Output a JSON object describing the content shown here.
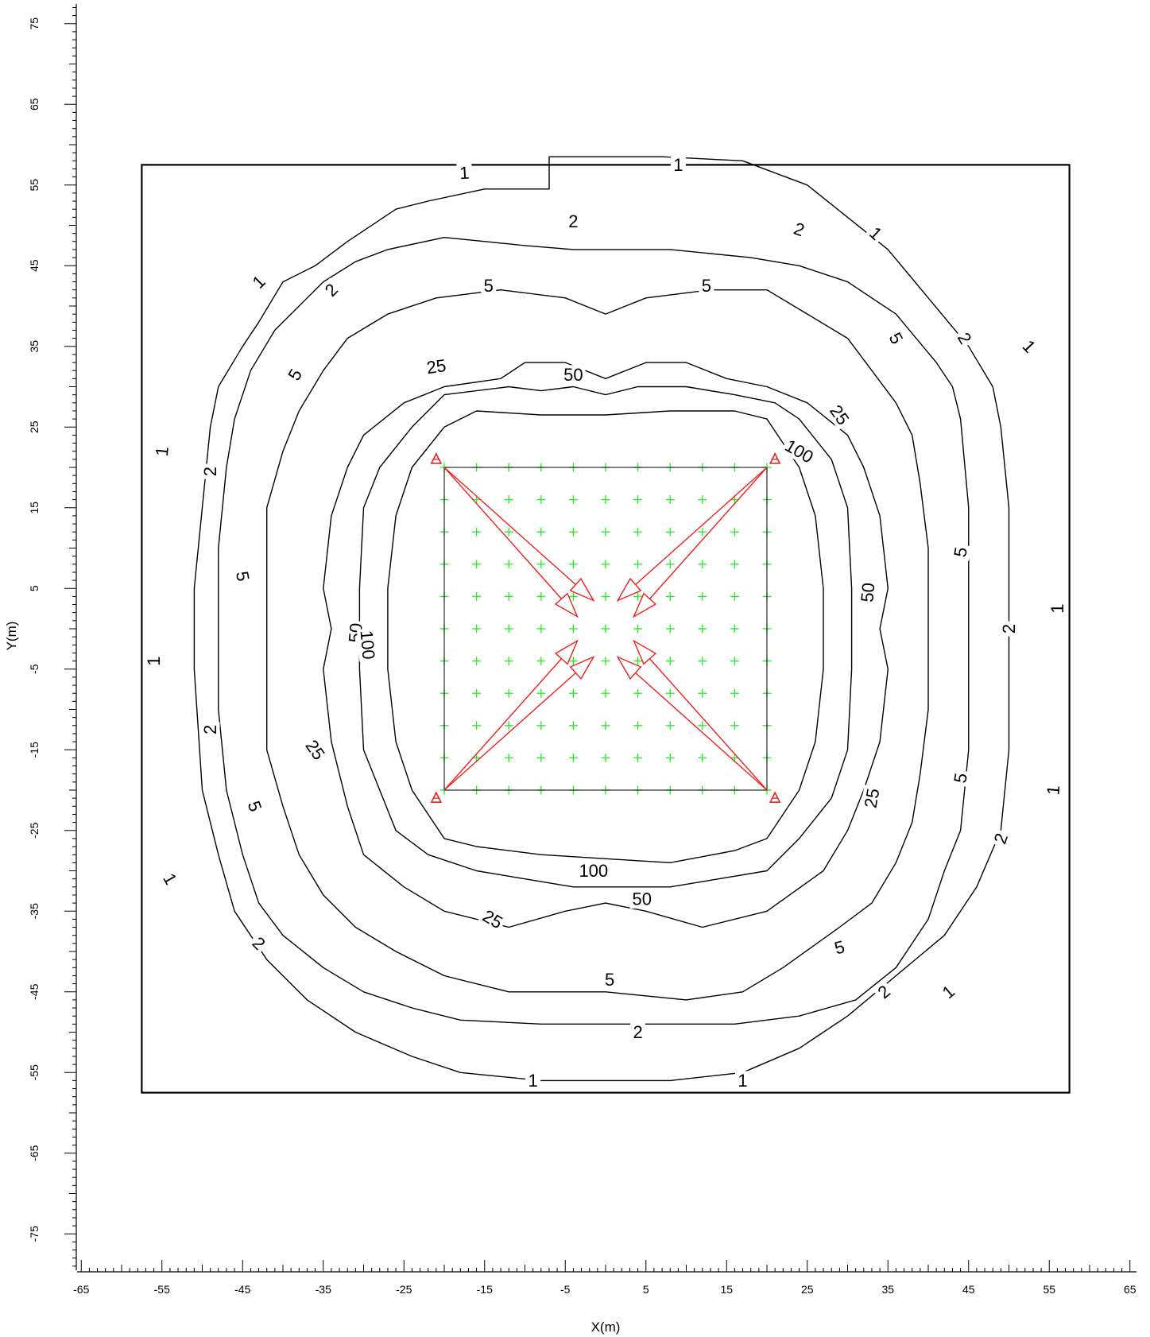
{
  "x_axis": {
    "title": "X(m)",
    "min": -65,
    "max": 65,
    "labels": [
      -65,
      -55,
      -45,
      -35,
      -25,
      -15,
      -5,
      5,
      15,
      25,
      35,
      45,
      55,
      65
    ]
  },
  "y_axis": {
    "title": "Y(m)",
    "min": -75,
    "max": 75,
    "labels": [
      75,
      65,
      55,
      45,
      35,
      25,
      15,
      5,
      -5,
      -15,
      -25,
      -35,
      -45,
      -55,
      -65,
      -75
    ]
  },
  "colors": {
    "contour": "#000000",
    "grid_points": "#22ee22",
    "sources": "#ee2222",
    "frame": "#000000"
  },
  "domain_box": {
    "x": [
      -57.5,
      57.5
    ],
    "y": [
      -57.5,
      57.5
    ]
  },
  "source_square": {
    "x": [
      -20,
      20
    ],
    "y": [
      -20,
      20
    ]
  },
  "sources": [
    {
      "x": -21,
      "y": 21
    },
    {
      "x": 21,
      "y": 21
    },
    {
      "x": -21,
      "y": -21
    },
    {
      "x": 21,
      "y": -21
    }
  ],
  "grid": {
    "x_start": -20,
    "x_end": 20,
    "y_start": -20,
    "y_end": 20,
    "step": 4,
    "marker": "plus"
  },
  "arrows": [
    {
      "from": [
        -20,
        20
      ],
      "to": [
        -1.5,
        3.5
      ]
    },
    {
      "from": [
        -20,
        20
      ],
      "to": [
        -3.5,
        1.5
      ]
    },
    {
      "from": [
        20,
        20
      ],
      "to": [
        1.5,
        3.5
      ]
    },
    {
      "from": [
        20,
        20
      ],
      "to": [
        3.5,
        1.5
      ]
    },
    {
      "from": [
        -20,
        -20
      ],
      "to": [
        -3.5,
        -1.5
      ]
    },
    {
      "from": [
        -20,
        -20
      ],
      "to": [
        -1.5,
        -3.5
      ]
    },
    {
      "from": [
        20,
        -20
      ],
      "to": [
        3.5,
        -1.5
      ]
    },
    {
      "from": [
        20,
        -20
      ],
      "to": [
        1.5,
        -3.5
      ]
    }
  ],
  "contours": [
    {
      "level": "1",
      "points": [
        [
          -7,
          58.5
        ],
        [
          7,
          58.5
        ],
        [
          17,
          58
        ],
        [
          25,
          55
        ],
        [
          30,
          51
        ],
        [
          35,
          47
        ],
        [
          40,
          41
        ],
        [
          45,
          35
        ],
        [
          48,
          30
        ],
        [
          49,
          25
        ],
        [
          50,
          15
        ],
        [
          50,
          5
        ],
        [
          50,
          -5
        ],
        [
          50,
          -15
        ],
        [
          49,
          -25
        ],
        [
          46,
          -32
        ],
        [
          42,
          -38
        ],
        [
          36,
          -43
        ],
        [
          30,
          -48
        ],
        [
          24,
          -52
        ],
        [
          17,
          -55
        ],
        [
          8,
          -56
        ],
        [
          -8,
          -56
        ],
        [
          -18,
          -55
        ],
        [
          -24,
          -53
        ],
        [
          -31,
          -50
        ],
        [
          -37,
          -46
        ],
        [
          -42,
          -41
        ],
        [
          -46,
          -35
        ],
        [
          -48,
          -28
        ],
        [
          -50,
          -20
        ],
        [
          -51,
          -5
        ],
        [
          -51,
          5
        ],
        [
          -50,
          15
        ],
        [
          -49,
          25
        ],
        [
          -48,
          30
        ],
        [
          -45,
          35
        ],
        [
          -43,
          38
        ],
        [
          -40,
          43
        ],
        [
          -36,
          45
        ],
        [
          -32,
          48
        ],
        [
          -26,
          52
        ],
        [
          -22,
          53
        ],
        [
          -15,
          54.5
        ],
        [
          -7,
          54.5
        ]
      ]
    },
    {
      "level": "2",
      "points": [
        [
          -4,
          47
        ],
        [
          8,
          47
        ],
        [
          18,
          46
        ],
        [
          24,
          45
        ],
        [
          30,
          43
        ],
        [
          36,
          39
        ],
        [
          41,
          33
        ],
        [
          43,
          30
        ],
        [
          44,
          26
        ],
        [
          45,
          15
        ],
        [
          45,
          5
        ],
        [
          45,
          -5
        ],
        [
          45,
          -15
        ],
        [
          44,
          -25
        ],
        [
          42,
          -30
        ],
        [
          40,
          -36
        ],
        [
          36,
          -42
        ],
        [
          31,
          -46
        ],
        [
          24,
          -48
        ],
        [
          16,
          -49
        ],
        [
          4,
          -49
        ],
        [
          -8,
          -49
        ],
        [
          -18,
          -48.5
        ],
        [
          -24,
          -47
        ],
        [
          -30,
          -45
        ],
        [
          -35,
          -42
        ],
        [
          -40,
          -38
        ],
        [
          -43,
          -34
        ],
        [
          -45,
          -28
        ],
        [
          -47,
          -20
        ],
        [
          -48,
          -10
        ],
        [
          -48,
          0
        ],
        [
          -48,
          10
        ],
        [
          -47,
          20
        ],
        [
          -46,
          26
        ],
        [
          -44,
          32
        ],
        [
          -41,
          37
        ],
        [
          -38,
          40
        ],
        [
          -35,
          43
        ],
        [
          -31,
          45.5
        ],
        [
          -27,
          47
        ],
        [
          -20,
          48.5
        ],
        [
          -10,
          47.5
        ]
      ]
    },
    {
      "level": "5",
      "points": [
        [
          -13,
          42
        ],
        [
          -5,
          41
        ],
        [
          0,
          39
        ],
        [
          5,
          41
        ],
        [
          13,
          42
        ],
        [
          20,
          42
        ],
        [
          25,
          39
        ],
        [
          30,
          36
        ],
        [
          33,
          32
        ],
        [
          36,
          28
        ],
        [
          38,
          24
        ],
        [
          39,
          18
        ],
        [
          40,
          10
        ],
        [
          40,
          5
        ],
        [
          40,
          -5
        ],
        [
          40,
          -10
        ],
        [
          39,
          -18
        ],
        [
          38,
          -24
        ],
        [
          36,
          -29
        ],
        [
          33,
          -34
        ],
        [
          29,
          -37
        ],
        [
          22,
          -42
        ],
        [
          17,
          -45
        ],
        [
          10,
          -46
        ],
        [
          0,
          -45
        ],
        [
          -5,
          -45
        ],
        [
          -12,
          -45
        ],
        [
          -20,
          -43
        ],
        [
          -26,
          -40
        ],
        [
          -31,
          -37
        ],
        [
          -35,
          -33
        ],
        [
          -38,
          -28
        ],
        [
          -40,
          -22
        ],
        [
          -42,
          -15
        ],
        [
          -42,
          -5
        ],
        [
          -42,
          0
        ],
        [
          -42,
          5
        ],
        [
          -42,
          15
        ],
        [
          -40,
          22
        ],
        [
          -38,
          27
        ],
        [
          -35,
          32
        ],
        [
          -32,
          36
        ],
        [
          -27,
          39
        ],
        [
          -21,
          41
        ]
      ]
    },
    {
      "level": "25",
      "points": [
        [
          -13,
          31
        ],
        [
          -10,
          33
        ],
        [
          -5,
          33
        ],
        [
          0,
          31
        ],
        [
          5,
          33
        ],
        [
          10,
          33
        ],
        [
          15,
          31
        ],
        [
          20,
          30
        ],
        [
          25,
          28
        ],
        [
          30,
          24
        ],
        [
          32,
          20
        ],
        [
          34,
          14
        ],
        [
          35,
          5
        ],
        [
          34,
          0
        ],
        [
          35,
          -5
        ],
        [
          34,
          -14
        ],
        [
          32,
          -20
        ],
        [
          30,
          -25
        ],
        [
          27,
          -30
        ],
        [
          20,
          -35
        ],
        [
          12,
          -37
        ],
        [
          5,
          -35
        ],
        [
          0,
          -34
        ],
        [
          -5,
          -35
        ],
        [
          -12,
          -37
        ],
        [
          -20,
          -35
        ],
        [
          -25,
          -32
        ],
        [
          -30,
          -28
        ],
        [
          -32,
          -22
        ],
        [
          -34,
          -14
        ],
        [
          -35,
          -5
        ],
        [
          -34,
          0
        ],
        [
          -35,
          5
        ],
        [
          -34,
          14
        ],
        [
          -32,
          20
        ],
        [
          -30,
          24
        ],
        [
          -25,
          28
        ],
        [
          -20,
          30
        ]
      ]
    },
    {
      "level": "50",
      "points": [
        [
          -8,
          29.5
        ],
        [
          -4,
          30
        ],
        [
          0,
          29
        ],
        [
          4,
          30
        ],
        [
          10,
          30
        ],
        [
          16,
          29
        ],
        [
          21,
          28
        ],
        [
          24,
          26
        ],
        [
          28,
          21
        ],
        [
          30,
          15
        ],
        [
          30.5,
          5
        ],
        [
          30.5,
          -5
        ],
        [
          30,
          -15
        ],
        [
          28,
          -21
        ],
        [
          24,
          -26
        ],
        [
          20,
          -30
        ],
        [
          14,
          -31
        ],
        [
          8,
          -32
        ],
        [
          2,
          -32
        ],
        [
          -4,
          -32
        ],
        [
          -10,
          -31
        ],
        [
          -16,
          -30
        ],
        [
          -22,
          -28
        ],
        [
          -26,
          -25
        ],
        [
          -28,
          -20
        ],
        [
          -30,
          -15
        ],
        [
          -30.5,
          -5
        ],
        [
          -30.5,
          5
        ],
        [
          -30,
          15
        ],
        [
          -28,
          20
        ],
        [
          -24,
          25
        ],
        [
          -20,
          29
        ],
        [
          -12,
          30
        ]
      ]
    },
    {
      "level": "100",
      "points": [
        [
          -8,
          26.5
        ],
        [
          0,
          26.5
        ],
        [
          8,
          27
        ],
        [
          16,
          27
        ],
        [
          20,
          26
        ],
        [
          24,
          20
        ],
        [
          26,
          14
        ],
        [
          27,
          5
        ],
        [
          27,
          -5
        ],
        [
          26,
          -14
        ],
        [
          24,
          -20
        ],
        [
          20,
          -26
        ],
        [
          16,
          -27.5
        ],
        [
          8,
          -29
        ],
        [
          0,
          -28.5
        ],
        [
          -8,
          -28
        ],
        [
          -16,
          -27
        ],
        [
          -20,
          -26
        ],
        [
          -24,
          -20
        ],
        [
          -26,
          -14
        ],
        [
          -27,
          -5
        ],
        [
          -27,
          5
        ],
        [
          -26,
          14
        ],
        [
          -24,
          20
        ],
        [
          -20,
          25
        ],
        [
          -16,
          27
        ]
      ]
    }
  ],
  "contour_labels": [
    {
      "text": "1",
      "x": -17.5,
      "y": 56.5,
      "angle": -3
    },
    {
      "text": "1",
      "x": 9,
      "y": 57.5,
      "angle": 0
    },
    {
      "text": "1",
      "x": 33.5,
      "y": 49,
      "angle": 42
    },
    {
      "text": "1",
      "x": -43,
      "y": 43,
      "angle": -45
    },
    {
      "text": "1",
      "x": -55,
      "y": 22,
      "angle": -84
    },
    {
      "text": "1",
      "x": 52.5,
      "y": 35,
      "angle": 47
    },
    {
      "text": "1",
      "x": 56,
      "y": 2.5,
      "angle": -90
    },
    {
      "text": "1",
      "x": -56,
      "y": -4,
      "angle": -90
    },
    {
      "text": "1",
      "x": 55.5,
      "y": -20,
      "angle": -85
    },
    {
      "text": "1",
      "x": -54,
      "y": -31,
      "angle": 60
    },
    {
      "text": "1",
      "x": 42.5,
      "y": -45,
      "angle": -40
    },
    {
      "text": "1",
      "x": -9,
      "y": -56,
      "angle": 0
    },
    {
      "text": "1",
      "x": 17,
      "y": -56,
      "angle": 0
    },
    {
      "text": "2",
      "x": -4,
      "y": 50.5,
      "angle": 0
    },
    {
      "text": "2",
      "x": 24,
      "y": 49.5,
      "angle": 20
    },
    {
      "text": "2",
      "x": -34,
      "y": 42,
      "angle": -45
    },
    {
      "text": "2",
      "x": 44.5,
      "y": 36,
      "angle": 60
    },
    {
      "text": "2",
      "x": -49,
      "y": 19.5,
      "angle": -90
    },
    {
      "text": "2",
      "x": 50,
      "y": 0,
      "angle": -90
    },
    {
      "text": "2",
      "x": -49,
      "y": -12.5,
      "angle": -90
    },
    {
      "text": "2",
      "x": 49,
      "y": -26,
      "angle": -70
    },
    {
      "text": "2",
      "x": -43,
      "y": -39,
      "angle": 45
    },
    {
      "text": "2",
      "x": 34.5,
      "y": -45,
      "angle": -40
    },
    {
      "text": "2",
      "x": 4,
      "y": -50,
      "angle": 0
    },
    {
      "text": "5",
      "x": -14.5,
      "y": 42.5,
      "angle": 0
    },
    {
      "text": "5",
      "x": 12.5,
      "y": 42.5,
      "angle": 0
    },
    {
      "text": "5",
      "x": -38.5,
      "y": 31.5,
      "angle": -60
    },
    {
      "text": "5",
      "x": 36,
      "y": 36,
      "angle": 60
    },
    {
      "text": "5",
      "x": 44,
      "y": 9.5,
      "angle": -80
    },
    {
      "text": "5",
      "x": -45,
      "y": 6.5,
      "angle": 80
    },
    {
      "text": "5",
      "x": 44,
      "y": -18.5,
      "angle": -80
    },
    {
      "text": "5",
      "x": -43.5,
      "y": -22,
      "angle": 70
    },
    {
      "text": "5",
      "x": 29,
      "y": -39.5,
      "angle": -15
    },
    {
      "text": "5",
      "x": 0.5,
      "y": -43.5,
      "angle": 0
    },
    {
      "text": "25",
      "x": -21,
      "y": 32.5,
      "angle": -8
    },
    {
      "text": "25",
      "x": 29,
      "y": 26.5,
      "angle": 55
    },
    {
      "text": "25",
      "x": -36,
      "y": -15,
      "angle": 55
    },
    {
      "text": "25",
      "x": 33,
      "y": -21,
      "angle": -80
    },
    {
      "text": "25",
      "x": -14,
      "y": -36,
      "angle": 30
    },
    {
      "text": "50",
      "x": -4,
      "y": 31.5,
      "angle": 0
    },
    {
      "text": "50",
      "x": 32.5,
      "y": 4.5,
      "angle": -85
    },
    {
      "text": "50",
      "x": -31,
      "y": -0.5,
      "angle": -85
    },
    {
      "text": "50",
      "x": 4.5,
      "y": -33.5,
      "angle": 0
    },
    {
      "text": "100",
      "x": 24,
      "y": 22,
      "angle": 30
    },
    {
      "text": "100",
      "x": -29.5,
      "y": -2,
      "angle": 85
    },
    {
      "text": "100",
      "x": -1.5,
      "y": -30,
      "angle": 0
    }
  ]
}
